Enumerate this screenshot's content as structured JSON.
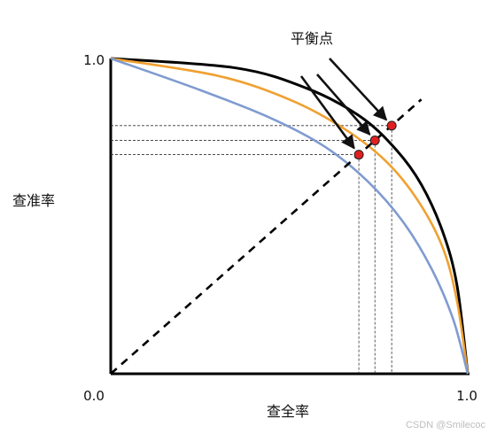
{
  "chart_data": {
    "type": "line",
    "title": "平衡点",
    "xlabel": "查全率",
    "ylabel": "查准率",
    "xlim": [
      0,
      1
    ],
    "ylim": [
      0,
      1
    ],
    "ticks": {
      "origin": "0.0",
      "x_max": "1.0",
      "y_max": "1.0"
    },
    "grid": false,
    "colors": {
      "black": "#000000",
      "orange": "#f0a030",
      "blue": "#7f9bd0",
      "point": "#e02020"
    },
    "series": [
      {
        "color": "black",
        "x": [
          0.0,
          0.35,
          0.55,
          0.7,
          0.8,
          0.87,
          0.93,
          0.97,
          1.0
        ],
        "y": [
          1.0,
          0.97,
          0.905,
          0.815,
          0.71,
          0.6,
          0.45,
          0.28,
          0.0
        ]
      },
      {
        "color": "orange",
        "x": [
          0.0,
          0.3,
          0.5,
          0.65,
          0.77,
          0.86,
          0.93,
          0.97,
          1.0
        ],
        "y": [
          1.0,
          0.945,
          0.87,
          0.78,
          0.675,
          0.55,
          0.4,
          0.23,
          0.0
        ]
      },
      {
        "color": "blue",
        "x": [
          0.0,
          0.25,
          0.45,
          0.6,
          0.72,
          0.82,
          0.9,
          0.96,
          1.0
        ],
        "y": [
          1.0,
          0.9,
          0.81,
          0.72,
          0.61,
          0.48,
          0.33,
          0.17,
          0.0
        ]
      }
    ],
    "diagonal": {
      "style": "dashed",
      "x": [
        0,
        0.87
      ],
      "y": [
        0,
        0.87
      ]
    },
    "break_even_points": [
      {
        "x": 0.695,
        "y": 0.695
      },
      {
        "x": 0.74,
        "y": 0.74
      },
      {
        "x": 0.787,
        "y": 0.787
      }
    ],
    "annotation_arrows": "three arrows from title to break-even points"
  },
  "watermark": "CSDN @Smilecoc"
}
